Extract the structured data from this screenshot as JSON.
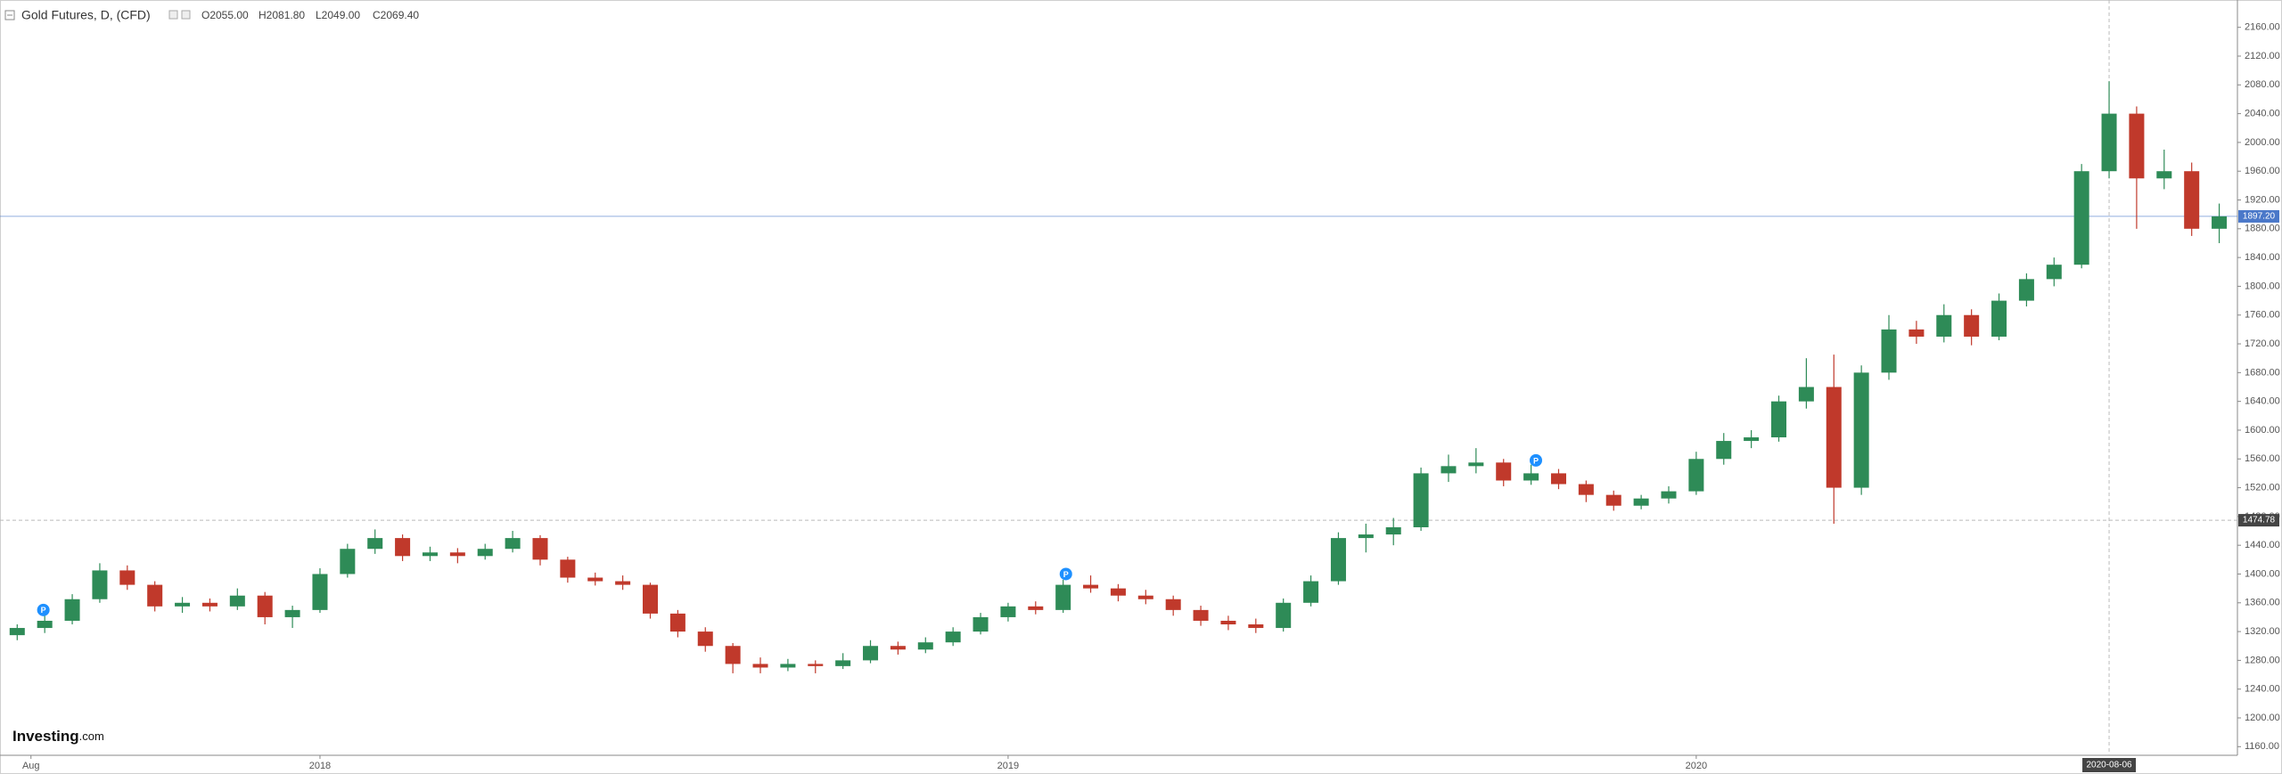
{
  "chart_data": {
    "type": "candlestick",
    "title": "Gold Futures, D, (CFD)",
    "header_values": [
      "O2055.00",
      "H2081.80",
      "L2049.00",
      "C2069.40"
    ],
    "brand": "Investing",
    "brand_suffix": ".com",
    "up_color": "#2e8b57",
    "down_color": "#c0392b",
    "xlim": [
      2017.535,
      2020.78
    ],
    "xticks": [
      {
        "value": 2017.58,
        "label": "Aug"
      },
      2018,
      2019,
      2020
    ],
    "ylim": [
      1148,
      2198
    ],
    "yticks": [
      {
        "value": 1160,
        "label": "1160.00"
      },
      {
        "value": 1200,
        "label": "1200.00"
      },
      {
        "value": 1240,
        "label": "1240.00"
      },
      {
        "value": 1280,
        "label": "1280.00"
      },
      {
        "value": 1320,
        "label": "1320.00"
      },
      {
        "value": 1360,
        "label": "1360.00"
      },
      {
        "value": 1400,
        "label": "1400.00"
      },
      {
        "value": 1440,
        "label": "1440.00"
      },
      {
        "value": 1480,
        "label": "1480.00"
      },
      {
        "value": 1520,
        "label": "1520.00"
      },
      {
        "value": 1560,
        "label": "1560.00"
      },
      {
        "value": 1600,
        "label": "1600.00"
      },
      {
        "value": 1640,
        "label": "1640.00"
      },
      {
        "value": 1680,
        "label": "1680.00"
      },
      {
        "value": 1720,
        "label": "1720.00"
      },
      {
        "value": 1760,
        "label": "1760.00"
      },
      {
        "value": 1800,
        "label": "1800.00"
      },
      {
        "value": 1840,
        "label": "1840.00"
      },
      {
        "value": 1880,
        "label": "1880.00"
      },
      {
        "value": 1920,
        "label": "1920.00"
      },
      {
        "value": 1960,
        "label": "1960.00"
      },
      {
        "value": 2000,
        "label": "2000.00"
      },
      {
        "value": 2040,
        "label": "2040.00"
      },
      {
        "value": 2080,
        "label": "2080.00"
      },
      {
        "value": 2120,
        "label": "2120.00"
      },
      {
        "value": 2160,
        "label": "2160.00"
      }
    ],
    "price_lines": [
      {
        "value": 1897.2,
        "label": "1897.20",
        "color": "#4a78c9",
        "style": "solid"
      },
      {
        "value": 1474.78,
        "label": "1474.78",
        "color": "#444444",
        "style": "dashed"
      }
    ],
    "crosshair": {
      "value": 2020.6,
      "label": "2020-08-06"
    },
    "markers": [
      {
        "x": 2017.598,
        "y": 1350,
        "label": "P"
      },
      {
        "x": 2019.084,
        "y": 1400,
        "label": "P"
      },
      {
        "x": 2019.767,
        "y": 1558,
        "label": "P"
      }
    ],
    "x": [
      2017.56,
      2017.6,
      2017.64,
      2017.68,
      2017.72,
      2017.76,
      2017.8,
      2017.84,
      2017.88,
      2017.92,
      2017.96,
      2018.0,
      2018.04,
      2018.08,
      2018.12,
      2018.16,
      2018.2,
      2018.24,
      2018.28,
      2018.32,
      2018.36,
      2018.4,
      2018.44,
      2018.48,
      2018.52,
      2018.56,
      2018.6,
      2018.64,
      2018.68,
      2018.72,
      2018.76,
      2018.8,
      2018.84,
      2018.88,
      2018.92,
      2018.96,
      2019.0,
      2019.04,
      2019.08,
      2019.12,
      2019.16,
      2019.2,
      2019.24,
      2019.28,
      2019.32,
      2019.36,
      2019.4,
      2019.44,
      2019.48,
      2019.52,
      2019.56,
      2019.6,
      2019.64,
      2019.68,
      2019.72,
      2019.76,
      2019.8,
      2019.84,
      2019.88,
      2019.92,
      2019.96,
      2020.0,
      2020.04,
      2020.08,
      2020.12,
      2020.16,
      2020.2,
      2020.24,
      2020.28,
      2020.32,
      2020.36,
      2020.4,
      2020.44,
      2020.48,
      2020.52,
      2020.56,
      2020.6,
      2020.64,
      2020.68,
      2020.72,
      2020.76
    ],
    "open": [
      1315,
      1325,
      1335,
      1365,
      1405,
      1385,
      1355,
      1360,
      1355,
      1370,
      1340,
      1350,
      1400,
      1435,
      1450,
      1425,
      1430,
      1425,
      1435,
      1450,
      1420,
      1395,
      1390,
      1385,
      1345,
      1320,
      1300,
      1275,
      1270,
      1275,
      1272,
      1280,
      1300,
      1295,
      1305,
      1320,
      1340,
      1355,
      1350,
      1385,
      1380,
      1370,
      1365,
      1350,
      1335,
      1330,
      1325,
      1360,
      1390,
      1450,
      1455,
      1465,
      1540,
      1550,
      1555,
      1530,
      1540,
      1525,
      1510,
      1495,
      1505,
      1515,
      1560,
      1585,
      1590,
      1640,
      1660,
      1520,
      1680,
      1740,
      1730,
      1760,
      1730,
      1780,
      1810,
      1830,
      1960,
      2040,
      1950,
      1960,
      1880
    ],
    "high": [
      1330,
      1342,
      1372,
      1415,
      1412,
      1390,
      1368,
      1366,
      1380,
      1375,
      1356,
      1408,
      1442,
      1462,
      1455,
      1438,
      1436,
      1442,
      1460,
      1454,
      1424,
      1402,
      1398,
      1388,
      1350,
      1326,
      1304,
      1284,
      1282,
      1280,
      1290,
      1308,
      1306,
      1312,
      1326,
      1346,
      1360,
      1362,
      1392,
      1398,
      1386,
      1378,
      1370,
      1356,
      1342,
      1338,
      1366,
      1398,
      1458,
      1470,
      1478,
      1548,
      1566,
      1575,
      1560,
      1552,
      1546,
      1530,
      1516,
      1510,
      1522,
      1570,
      1596,
      1600,
      1648,
      1700,
      1705,
      1690,
      1760,
      1752,
      1775,
      1768,
      1790,
      1818,
      1840,
      1970,
      2085,
      2050,
      1990,
      1972,
      1915
    ],
    "low": [
      1308,
      1318,
      1330,
      1360,
      1378,
      1348,
      1346,
      1348,
      1350,
      1330,
      1325,
      1346,
      1395,
      1428,
      1418,
      1418,
      1415,
      1420,
      1430,
      1412,
      1388,
      1384,
      1378,
      1338,
      1312,
      1292,
      1262,
      1262,
      1265,
      1262,
      1268,
      1276,
      1288,
      1290,
      1300,
      1316,
      1334,
      1344,
      1346,
      1374,
      1362,
      1358,
      1342,
      1328,
      1322,
      1318,
      1320,
      1355,
      1385,
      1430,
      1440,
      1460,
      1528,
      1540,
      1522,
      1524,
      1518,
      1500,
      1488,
      1490,
      1498,
      1510,
      1552,
      1575,
      1584,
      1630,
      1470,
      1510,
      1670,
      1720,
      1722,
      1718,
      1725,
      1772,
      1800,
      1825,
      1950,
      1880,
      1935,
      1870,
      1860
    ],
    "close": [
      1325,
      1335,
      1365,
      1405,
      1385,
      1355,
      1360,
      1355,
      1370,
      1340,
      1350,
      1400,
      1435,
      1450,
      1425,
      1430,
      1425,
      1435,
      1450,
      1420,
      1395,
      1390,
      1385,
      1345,
      1320,
      1300,
      1275,
      1270,
      1275,
      1272,
      1280,
      1300,
      1295,
      1305,
      1320,
      1340,
      1355,
      1350,
      1385,
      1380,
      1370,
      1365,
      1350,
      1335,
      1330,
      1325,
      1360,
      1390,
      1450,
      1455,
      1465,
      1540,
      1550,
      1555,
      1530,
      1540,
      1525,
      1510,
      1495,
      1505,
      1515,
      1560,
      1585,
      1590,
      1640,
      1660,
      1520,
      1680,
      1740,
      1730,
      1760,
      1730,
      1780,
      1810,
      1830,
      1960,
      2040,
      1950,
      1960,
      1880,
      1897.2
    ]
  }
}
